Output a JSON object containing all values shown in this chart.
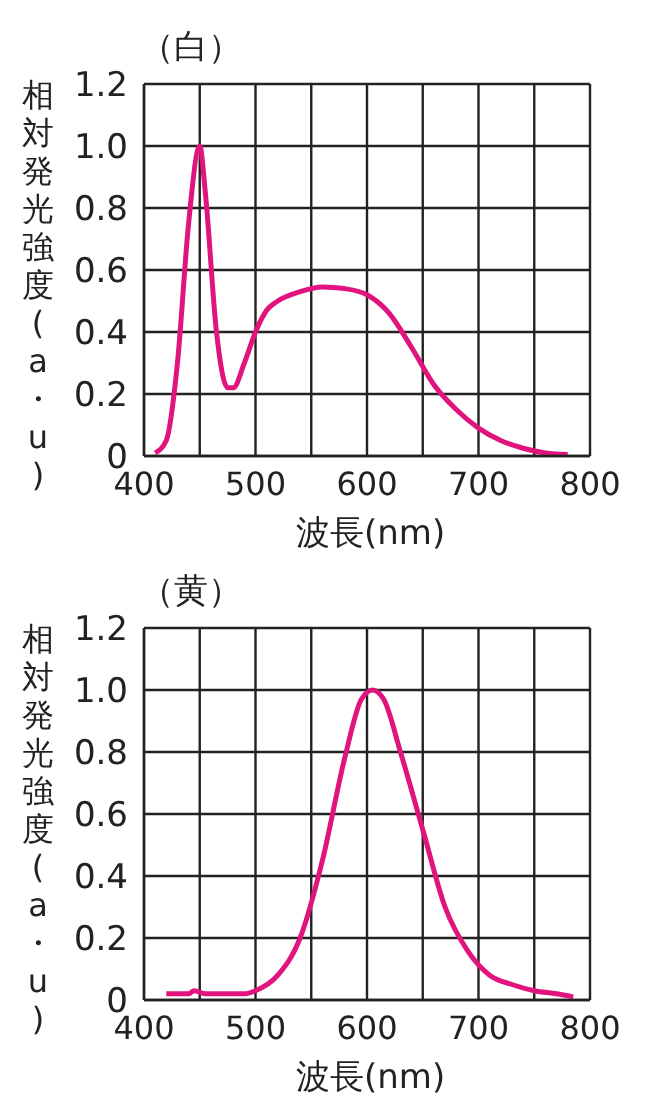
{
  "chart_data": [
    {
      "type": "line",
      "title": "（白）",
      "xlabel": "波長(nm)",
      "ylabel": "相対発光強度(a・u)",
      "xlim": [
        400,
        800
      ],
      "xticks": [
        400,
        {
          "value": 450,
          "label": null
        },
        500,
        {
          "value": 550,
          "label": null
        },
        600,
        {
          "value": 650,
          "label": null
        },
        700,
        {
          "value": 750,
          "label": null
        },
        800
      ],
      "ylim": [
        0,
        1.2
      ],
      "yticks": [
        0,
        0.2,
        0.4,
        0.6,
        0.8,
        {
          "value": 1,
          "label": "1.0"
        },
        1.2
      ],
      "grid": true,
      "marker": "none",
      "line_style": "solid",
      "series": [
        {
          "color": "#e0147c",
          "x": [
            410,
            420,
            430,
            440,
            450,
            455,
            465,
            475,
            480,
            490,
            500,
            510,
            520,
            540,
            560,
            580,
            600,
            620,
            640,
            660,
            680,
            700,
            720,
            740,
            760,
            780
          ],
          "values": [
            0.01,
            0.05,
            0.3,
            0.75,
            1.0,
            0.85,
            0.4,
            0.22,
            0.22,
            0.3,
            0.4,
            0.47,
            0.5,
            0.53,
            0.545,
            0.54,
            0.52,
            0.46,
            0.35,
            0.23,
            0.15,
            0.09,
            0.05,
            0.025,
            0.01,
            0.005
          ]
        }
      ]
    },
    {
      "type": "line",
      "title": "（黄）",
      "xlabel": "波長(nm)",
      "ylabel": "相対発光強度(a・u)",
      "xlim": [
        400,
        800
      ],
      "xticks": [
        400,
        {
          "value": 450,
          "label": null
        },
        500,
        {
          "value": 550,
          "label": null
        },
        600,
        {
          "value": 650,
          "label": null
        },
        700,
        {
          "value": 750,
          "label": null
        },
        800
      ],
      "ylim": [
        0,
        1.2
      ],
      "yticks": [
        0,
        0.2,
        0.4,
        0.6,
        0.8,
        {
          "value": 1,
          "label": "1.0"
        },
        1.2
      ],
      "grid": true,
      "marker": "none",
      "line_style": "solid",
      "series": [
        {
          "color": "#e0147c",
          "x": [
            420,
            440,
            445,
            455,
            490,
            500,
            520,
            540,
            560,
            580,
            595,
            605,
            615,
            630,
            650,
            670,
            690,
            710,
            730,
            750,
            770,
            785
          ],
          "values": [
            0.02,
            0.02,
            0.03,
            0.02,
            0.02,
            0.03,
            0.08,
            0.2,
            0.45,
            0.78,
            0.97,
            1.0,
            0.97,
            0.8,
            0.55,
            0.3,
            0.16,
            0.08,
            0.05,
            0.03,
            0.02,
            0.01
          ]
        }
      ]
    }
  ]
}
